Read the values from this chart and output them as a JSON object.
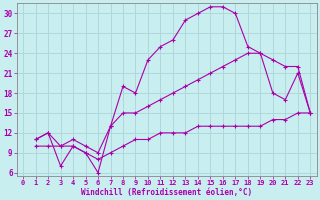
{
  "background_color": "#c8eef0",
  "line_color": "#aa00aa",
  "grid_color": "#b0d8dc",
  "xlabel": "Windchill (Refroidissement éolien,°C)",
  "xlim": [
    -0.5,
    23.5
  ],
  "ylim": [
    5.5,
    31.5
  ],
  "yticks": [
    6,
    9,
    12,
    15,
    18,
    21,
    24,
    27,
    30
  ],
  "xticks": [
    0,
    1,
    2,
    3,
    4,
    5,
    6,
    7,
    8,
    9,
    10,
    11,
    12,
    13,
    14,
    15,
    16,
    17,
    18,
    19,
    20,
    21,
    22,
    23
  ],
  "line1_x": [
    1,
    2,
    3,
    4,
    5,
    6,
    7,
    8,
    9,
    10,
    11,
    12,
    13,
    14,
    15,
    16,
    17,
    18,
    19,
    20,
    21,
    22,
    23
  ],
  "line1_y": [
    11,
    12,
    7,
    10,
    9,
    6,
    13,
    19,
    18,
    23,
    25,
    26,
    29,
    30,
    31,
    31,
    30,
    25,
    24,
    18,
    17,
    21,
    15
  ],
  "line2_x": [
    1,
    2,
    3,
    4,
    5,
    6,
    7,
    8,
    9,
    10,
    11,
    12,
    13,
    14,
    15,
    16,
    17,
    18,
    19,
    20,
    21,
    22,
    23
  ],
  "line2_y": [
    11,
    12,
    10,
    11,
    10,
    9,
    13,
    15,
    15,
    16,
    17,
    18,
    19,
    20,
    21,
    22,
    23,
    24,
    24,
    23,
    22,
    22,
    15
  ],
  "line3_x": [
    1,
    2,
    3,
    4,
    5,
    6,
    7,
    8,
    9,
    10,
    11,
    12,
    13,
    14,
    15,
    16,
    17,
    18,
    19,
    20,
    21,
    22,
    23
  ],
  "line3_y": [
    10,
    10,
    10,
    10,
    9,
    8,
    9,
    10,
    11,
    11,
    12,
    12,
    12,
    13,
    13,
    13,
    13,
    13,
    13,
    14,
    14,
    15,
    15
  ],
  "tick_fontsize": 5,
  "xlabel_fontsize": 5.5,
  "spine_color": "#888888"
}
